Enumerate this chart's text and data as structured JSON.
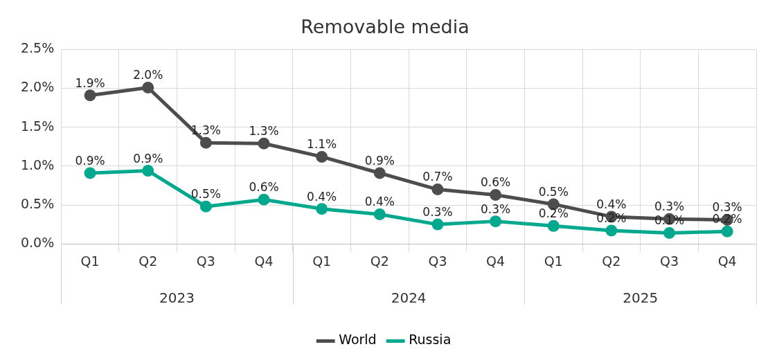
{
  "chart_data": {
    "type": "line",
    "title": "Removable media",
    "categories": [
      "Q1",
      "Q2",
      "Q3",
      "Q4",
      "Q1",
      "Q2",
      "Q3",
      "Q4",
      "Q1",
      "Q2",
      "Q3",
      "Q4"
    ],
    "series": [
      {
        "name": "World",
        "color": "#4d4d4d",
        "values": [
          1.91,
          2.01,
          1.3,
          1.29,
          1.12,
          0.91,
          0.7,
          0.63,
          0.51,
          0.35,
          0.32,
          0.31
        ],
        "value_labels": [
          "1.9%",
          "2.0%",
          "1.3%",
          "1.3%",
          "1.1%",
          "0.9%",
          "0.7%",
          "0.6%",
          "0.5%",
          "0.4%",
          "0.3%",
          "0.3%"
        ]
      },
      {
        "name": "Russia",
        "color": "#00a88e",
        "values": [
          0.91,
          0.94,
          0.48,
          0.57,
          0.45,
          0.38,
          0.25,
          0.29,
          0.23,
          0.17,
          0.14,
          0.16
        ],
        "value_labels": [
          "0.9%",
          "0.9%",
          "0.5%",
          "0.6%",
          "0.4%",
          "0.4%",
          "0.3%",
          "0.3%",
          "0.2%",
          "0.2%",
          "0.1%",
          "0.2%"
        ]
      }
    ],
    "ylim": [
      0,
      2.5
    ],
    "yticks": [
      {
        "value": 0,
        "label": "0.0%"
      },
      {
        "value": 0.5,
        "label": "0.5%"
      },
      {
        "value": 1,
        "label": "1.0%"
      },
      {
        "value": 1.5,
        "label": "1.5%"
      },
      {
        "value": 2,
        "label": "2.0%"
      },
      {
        "value": 2.5,
        "label": "2.5%"
      }
    ],
    "annotations": [
      "2023",
      "2024",
      "2025"
    ],
    "grid": true,
    "legend": "bottom",
    "marker": "circle",
    "line_style": "solid"
  }
}
